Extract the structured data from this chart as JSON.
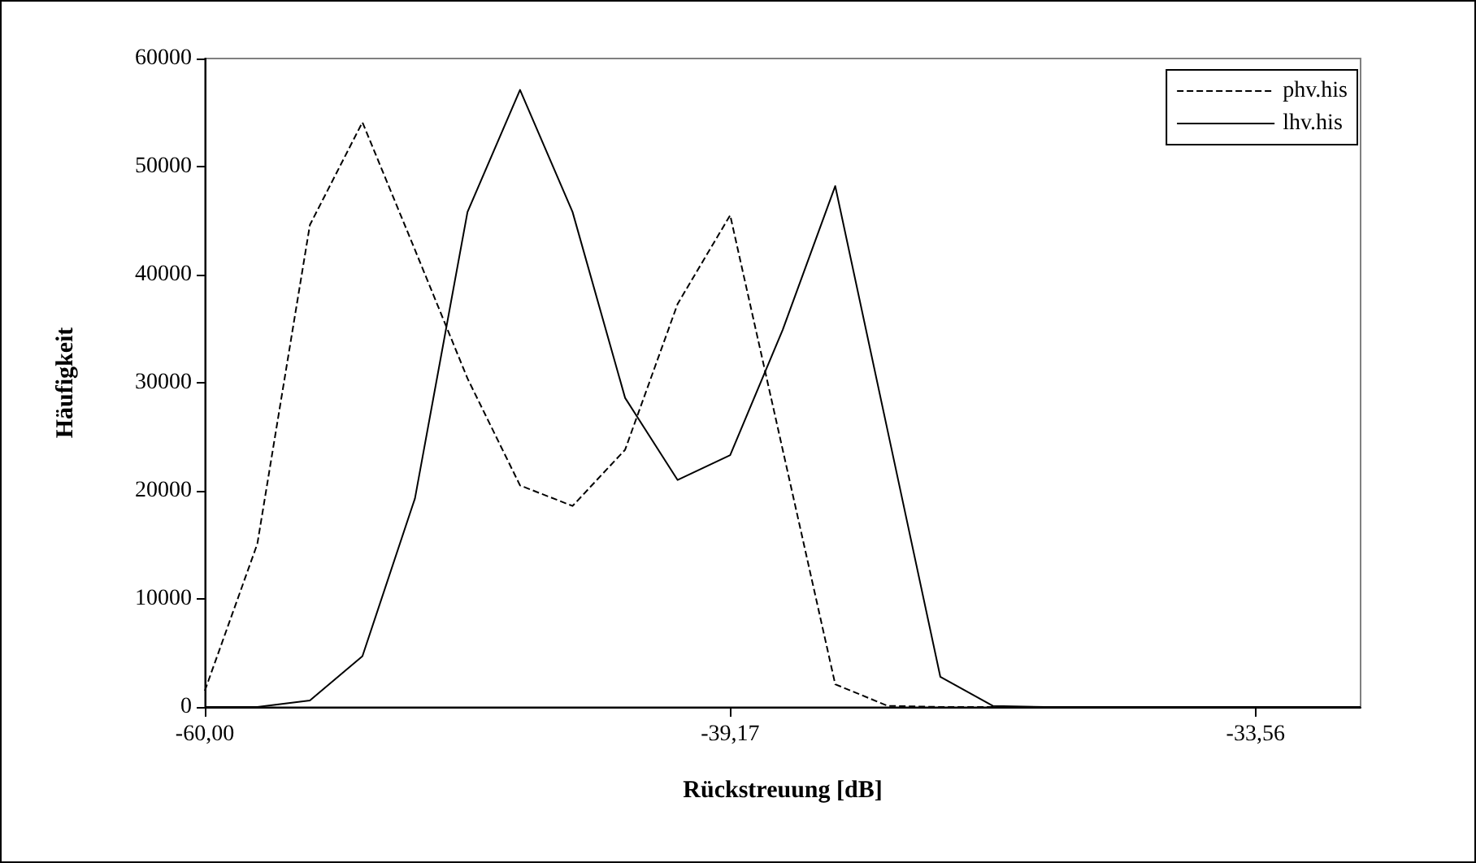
{
  "chart_data": {
    "type": "line",
    "xlabel": "Rückstreuung [dB]",
    "ylabel": "Häufigkeit",
    "categories": [
      "-60,00",
      null,
      null,
      null,
      null,
      null,
      null,
      null,
      null,
      null,
      "-39,17",
      null,
      null,
      null,
      null,
      null,
      null,
      null,
      null,
      null,
      "-33,56",
      null,
      null
    ],
    "series": [
      {
        "name": "phv.his",
        "color": "#000000",
        "line_style": "dashed",
        "values": [
          1500,
          15100,
          44600,
          54100,
          42300,
          30400,
          20500,
          18600,
          23800,
          37300,
          45500,
          23800,
          2100,
          100,
          0,
          0,
          0,
          0,
          0,
          0,
          0,
          0,
          0
        ]
      },
      {
        "name": "lhv.his",
        "color": "#000000",
        "line_style": "solid",
        "values": [
          0,
          0,
          600,
          4700,
          19300,
          45800,
          57100,
          45800,
          28600,
          21000,
          23300,
          34900,
          48200,
          25500,
          2800,
          100,
          0,
          0,
          0,
          0,
          0,
          0,
          0
        ]
      }
    ],
    "ylim": [
      0,
      60000
    ],
    "yticks": [
      0,
      10000,
      20000,
      30000,
      40000,
      50000,
      60000
    ],
    "grid": false,
    "legend": "top right",
    "marker": "none"
  }
}
